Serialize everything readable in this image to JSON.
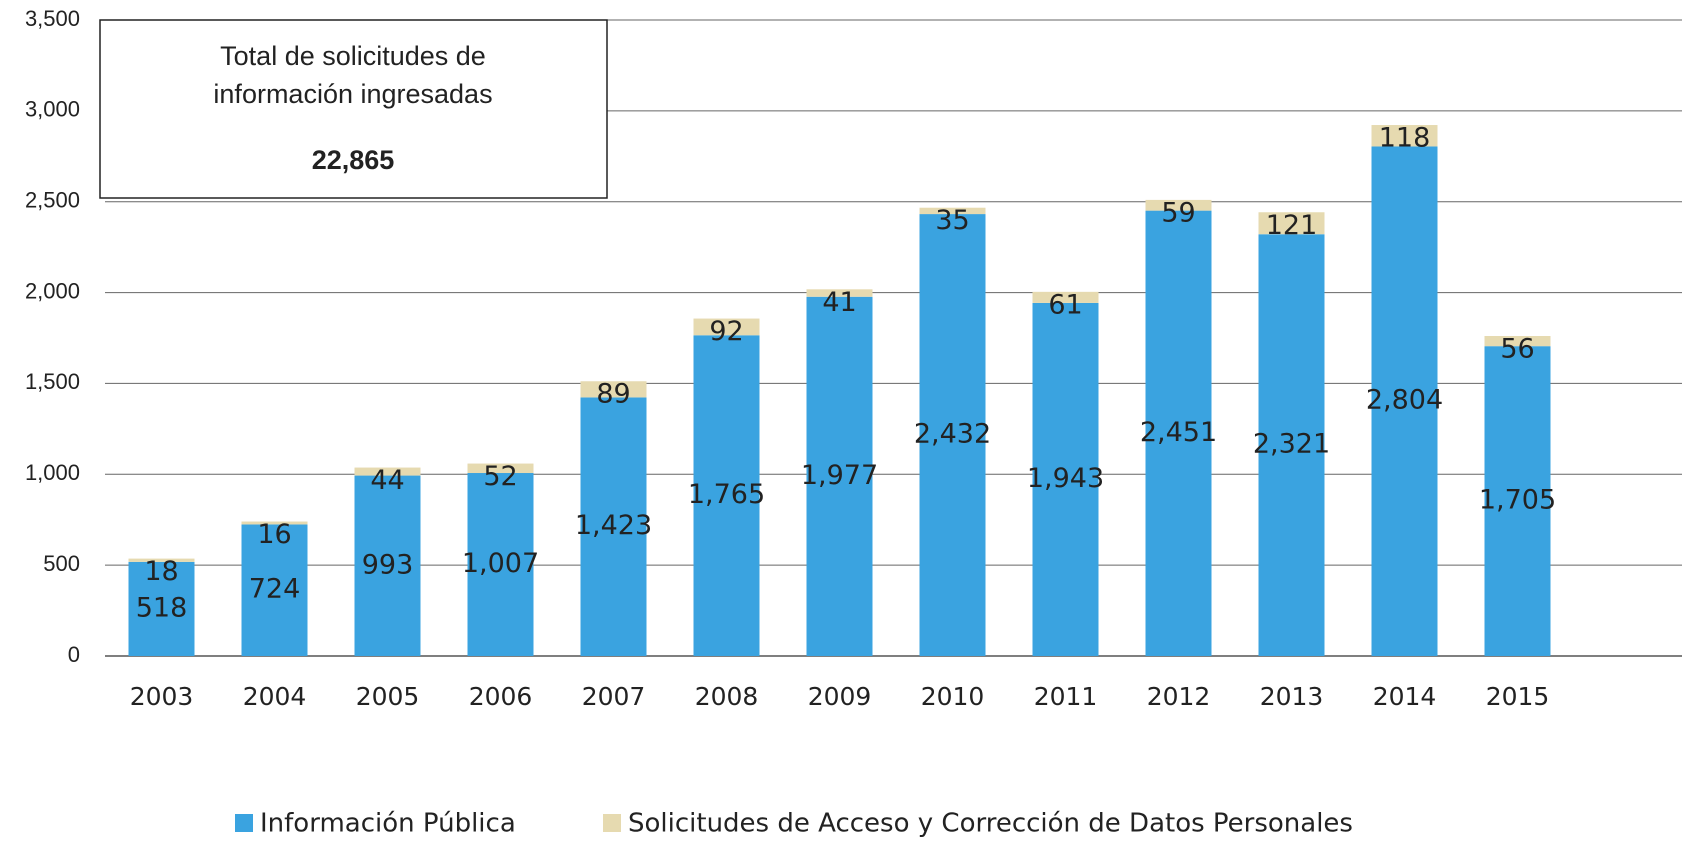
{
  "chart_data": {
    "type": "stacked_bar",
    "annotation": {
      "text": [
        "Total de solicitudes de",
        "información ingresadas"
      ],
      "total": "22,865"
    },
    "categories": [
      "2003",
      "2004",
      "2005",
      "2006",
      "2007",
      "2008",
      "2009",
      "2010",
      "2011",
      "2012",
      "2013",
      "2014",
      "2015"
    ],
    "series": [
      {
        "name": "Información Pública",
        "color": "#3aa3e0",
        "values": [
          518,
          724,
          993,
          1007,
          1423,
          1765,
          1977,
          2432,
          1943,
          2451,
          2321,
          2804,
          1705
        ],
        "value_labels": [
          "518",
          "724",
          "993",
          "1,007",
          "1,423",
          "1,765",
          "1,977",
          "2,432",
          "1,943",
          "2,451",
          "2,321",
          "2,804",
          "1,705"
        ]
      },
      {
        "name": "Solicitudes de Acceso y Corrección de Datos Personales",
        "color": "#e6dab0",
        "values": [
          18,
          16,
          44,
          52,
          89,
          92,
          41,
          35,
          61,
          59,
          121,
          118,
          56
        ]
      }
    ],
    "ylim": [
      0,
      3500
    ],
    "yticks": [
      0,
      500,
      {
        "value": 1000,
        "label": "1,000"
      },
      {
        "value": 1500,
        "label": "1,500"
      },
      {
        "value": 2000,
        "label": "2,000"
      },
      {
        "value": 2500,
        "label": "2,500"
      },
      {
        "value": 3000,
        "label": "3,000"
      },
      {
        "value": 3500,
        "label": "3,500"
      }
    ],
    "grid": true,
    "legend": "bottom"
  }
}
